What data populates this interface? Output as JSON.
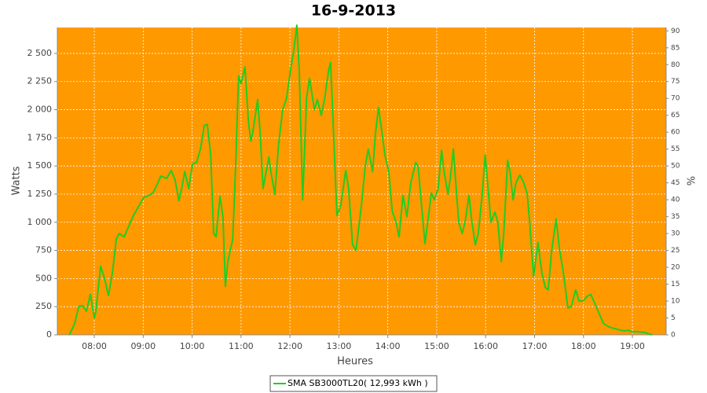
{
  "chart_data": {
    "type": "line",
    "title": "16-9-2013",
    "x_label": "Heures",
    "y_label": "Watts",
    "y2_label": "%",
    "xlim": [
      7.245,
      19.69
    ],
    "xticks": [
      {
        "value": 8,
        "label": "08:00"
      },
      {
        "value": 9,
        "label": "09:00"
      },
      {
        "value": 10,
        "label": "10:00"
      },
      {
        "value": 11,
        "label": "11:00"
      },
      {
        "value": 12,
        "label": "12:00"
      },
      {
        "value": 13,
        "label": "13:00"
      },
      {
        "value": 14,
        "label": "14:00"
      },
      {
        "value": 15,
        "label": "15:00"
      },
      {
        "value": 16,
        "label": "16:00"
      },
      {
        "value": 17,
        "label": "17:00"
      },
      {
        "value": 18,
        "label": "18:00"
      },
      {
        "value": 19,
        "label": "19:00"
      }
    ],
    "ylim": [
      0,
      2730
    ],
    "yticks": [
      0,
      250,
      500,
      750,
      {
        "value": 1000,
        "label": "1 000"
      },
      {
        "value": 1250,
        "label": "1 250"
      },
      {
        "value": 1500,
        "label": "1 500"
      },
      {
        "value": 1750,
        "label": "1 750"
      },
      {
        "value": 2000,
        "label": "2 000"
      },
      {
        "value": 2250,
        "label": "2 250"
      },
      {
        "value": 2500,
        "label": "2 500"
      }
    ],
    "y2lim": [
      0,
      91
    ],
    "y2ticks": [
      0,
      5,
      10,
      15,
      20,
      25,
      30,
      35,
      40,
      45,
      50,
      55,
      60,
      65,
      70,
      75,
      80,
      85,
      90
    ],
    "grid": true,
    "background": "#ff9900",
    "legend": "bottom",
    "x": [
      7.49,
      7.6,
      7.68,
      7.76,
      7.84,
      7.92,
      8.0,
      8.03,
      8.13,
      8.21,
      8.29,
      8.37,
      8.45,
      8.51,
      8.61,
      8.69,
      8.8,
      8.92,
      9.01,
      9.12,
      9.2,
      9.28,
      9.36,
      9.48,
      9.57,
      9.65,
      9.73,
      9.8,
      9.85,
      9.93,
      10.01,
      10.09,
      10.17,
      10.25,
      10.31,
      10.38,
      10.44,
      10.49,
      10.57,
      10.63,
      10.68,
      10.73,
      10.83,
      10.89,
      10.95,
      11.0,
      11.08,
      11.15,
      11.2,
      11.24,
      11.34,
      11.39,
      11.45,
      11.57,
      11.61,
      11.69,
      11.77,
      11.85,
      11.93,
      12.01,
      12.08,
      12.14,
      12.19,
      12.26,
      12.34,
      12.4,
      12.5,
      12.56,
      12.64,
      12.71,
      12.79,
      12.83,
      12.9,
      12.96,
      13.04,
      13.14,
      13.2,
      13.28,
      13.35,
      13.46,
      13.54,
      13.6,
      13.69,
      13.75,
      13.81,
      13.88,
      13.94,
      14.02,
      14.09,
      14.17,
      14.23,
      14.31,
      14.39,
      14.47,
      14.57,
      14.62,
      14.7,
      14.76,
      14.83,
      14.89,
      14.95,
      15.03,
      15.1,
      15.15,
      15.23,
      15.28,
      15.34,
      15.39,
      15.45,
      15.52,
      15.58,
      15.66,
      15.72,
      15.79,
      15.85,
      15.93,
      15.99,
      16.04,
      16.11,
      16.19,
      16.25,
      16.32,
      16.37,
      16.45,
      16.5,
      16.56,
      16.62,
      16.7,
      16.78,
      16.85,
      16.9,
      16.98,
      17.07,
      17.15,
      17.22,
      17.28,
      17.35,
      17.44,
      17.51,
      17.59,
      17.64,
      17.68,
      17.75,
      17.84,
      17.91,
      17.99,
      18.07,
      18.15,
      18.21,
      18.31,
      18.41,
      18.52,
      18.6,
      18.68,
      18.76,
      18.84,
      18.92,
      19.0,
      19.08,
      19.16,
      19.27,
      19.32,
      19.4
    ],
    "series": [
      {
        "name": "SMA SB3000TL20( 12,993 kWh )",
        "color": "#22cc22",
        "values": [
          0,
          100,
          250,
          260,
          210,
          360,
          150,
          200,
          610,
          500,
          350,
          550,
          850,
          900,
          870,
          950,
          1060,
          1150,
          1220,
          1240,
          1260,
          1330,
          1410,
          1390,
          1460,
          1380,
          1190,
          1330,
          1450,
          1300,
          1520,
          1530,
          1650,
          1860,
          1870,
          1600,
          900,
          870,
          1230,
          1050,
          430,
          650,
          850,
          1500,
          2300,
          2230,
          2380,
          1900,
          1720,
          1800,
          2090,
          1800,
          1300,
          1580,
          1450,
          1250,
          1700,
          2000,
          2100,
          2350,
          2530,
          2750,
          2350,
          1200,
          2100,
          2280,
          2000,
          2090,
          1950,
          2100,
          2350,
          2420,
          1700,
          1060,
          1150,
          1460,
          1300,
          800,
          750,
          1150,
          1500,
          1650,
          1450,
          1800,
          2020,
          1800,
          1600,
          1450,
          1100,
          1000,
          870,
          1240,
          1050,
          1350,
          1530,
          1500,
          1100,
          810,
          1050,
          1260,
          1200,
          1300,
          1640,
          1450,
          1250,
          1400,
          1650,
          1350,
          1000,
          900,
          1000,
          1240,
          1000,
          800,
          900,
          1250,
          1600,
          1350,
          1000,
          1090,
          1000,
          650,
          900,
          1550,
          1450,
          1200,
          1350,
          1420,
          1350,
          1250,
          1000,
          520,
          820,
          550,
          420,
          400,
          750,
          1030,
          760,
          550,
          380,
          240,
          250,
          400,
          300,
          300,
          340,
          360,
          300,
          200,
          100,
          70,
          60,
          50,
          40,
          35,
          40,
          25,
          30,
          25,
          20,
          10,
          0
        ]
      }
    ]
  }
}
